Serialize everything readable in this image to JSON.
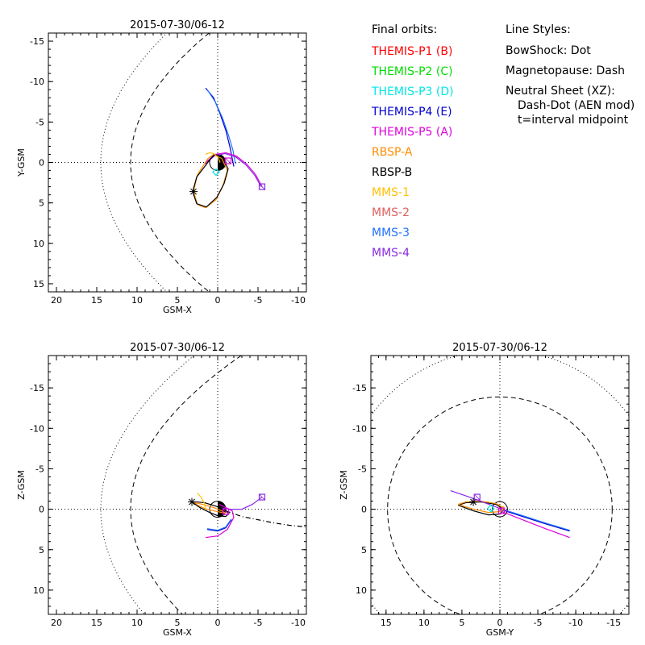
{
  "colors": {
    "themis_p1": "#ff0000",
    "themis_p2": "#00dd00",
    "themis_p3": "#00e5e5",
    "themis_p4": "#0000cc",
    "themis_p5": "#dd00dd",
    "rbsp_a": "#ff8c00",
    "rbsp_b": "#000000",
    "mms1": "#ffc000",
    "mms2": "#e06060",
    "mms3": "#2070ff",
    "mms4": "#8a2be2"
  },
  "legend": {
    "header": "Final orbits:",
    "entries": [
      {
        "label": "THEMIS-P1 (B)",
        "color": "#ff0000"
      },
      {
        "label": "THEMIS-P2 (C)",
        "color": "#00dd00"
      },
      {
        "label": "THEMIS-P3 (D)",
        "color": "#00e5e5"
      },
      {
        "label": "THEMIS-P4 (E)",
        "color": "#0000cc"
      },
      {
        "label": "THEMIS-P5 (A)",
        "color": "#dd00dd"
      },
      {
        "label": "RBSP-A",
        "color": "#ff8c00"
      },
      {
        "label": "RBSP-B",
        "color": "#000000"
      },
      {
        "label": "MMS-1",
        "color": "#ffc000"
      },
      {
        "label": "MMS-2",
        "color": "#e06060"
      },
      {
        "label": "MMS-3",
        "color": "#2070ff"
      },
      {
        "label": "MMS-4",
        "color": "#8a2be2"
      }
    ]
  },
  "line_styles": {
    "header": "Line Styles:",
    "lines": [
      "BowShock: Dot",
      "Magnetopause: Dash",
      "Neutral Sheet (XZ):",
      "Dash-Dot (AEN mod)",
      "t=interval midpoint"
    ]
  },
  "chart_data": [
    {
      "type": "line",
      "title": "2015-07-30/06-12",
      "xlabel": "GSM-X",
      "ylabel": "Y-GSM",
      "xlim": [
        21,
        -11
      ],
      "ylim": [
        16,
        -16
      ],
      "xticks": [
        20,
        15,
        10,
        5,
        0,
        -5,
        -10
      ],
      "yticks": [
        -15,
        -10,
        -5,
        0,
        5,
        10,
        15
      ],
      "series": [
        {
          "color": "#0000cc",
          "x": [
            1.5,
            0.5,
            -0.3,
            -1.0,
            -1.5,
            -1.8,
            -2.0
          ],
          "y": [
            -9.2,
            -8.0,
            -6.0,
            -4.0,
            -2.0,
            -0.5,
            0.5
          ]
        },
        {
          "color": "#2070ff",
          "x": [
            1.3,
            0.3,
            -0.6,
            -1.3,
            -1.9,
            -2.2
          ],
          "y": [
            -9.0,
            -7.5,
            -5.5,
            -3.5,
            -1.5,
            0.2
          ]
        },
        {
          "color": "#dd00dd",
          "x": [
            1.5,
            0.3,
            -1.0,
            -2.3,
            -3.6,
            -4.7,
            -5.5
          ],
          "y": [
            0.0,
            -1.0,
            -1.2,
            -0.8,
            0.2,
            1.5,
            3.0
          ]
        },
        {
          "color": "#8a2be2",
          "x": [
            1.6,
            0.4,
            -0.9,
            -2.2,
            -3.5,
            -4.6,
            -5.4
          ],
          "y": [
            0.2,
            -0.8,
            -1.1,
            -0.7,
            0.3,
            1.6,
            3.0
          ]
        },
        {
          "color": "#ff8c00",
          "x": [
            1.2,
            2.5,
            3.0,
            2.5,
            1.5,
            0.2,
            -0.6,
            -1.2,
            -0.5,
            0.5,
            1.2
          ],
          "y": [
            -0.5,
            1.5,
            3.6,
            5.2,
            5.6,
            4.6,
            3.0,
            1.0,
            -0.5,
            -1.0,
            -0.5
          ]
        },
        {
          "color": "#000000",
          "x": [
            1.0,
            2.6,
            3.1,
            2.6,
            1.4,
            0.1,
            -0.8,
            -1.3,
            -0.6,
            0.4,
            1.0
          ],
          "y": [
            -0.3,
            1.8,
            3.6,
            5.1,
            5.5,
            4.3,
            2.6,
            0.8,
            -0.6,
            -1.0,
            -0.3
          ]
        },
        {
          "color": "#ffc000",
          "x": [
            1.5,
            1.0,
            0.5,
            0.0,
            -0.3
          ],
          "y": [
            -1.0,
            -1.2,
            -1.1,
            -0.7,
            0.0
          ]
        }
      ],
      "markers": [
        {
          "type": "star",
          "x": 3.0,
          "y": 3.6
        },
        {
          "type": "box",
          "x": -5.5,
          "y": 3.0,
          "color": "#8a2be2"
        },
        {
          "type": "box",
          "x": -1.3,
          "y": -0.2,
          "color": "#dd00dd"
        },
        {
          "type": "diamond",
          "x": 0.2,
          "y": 1.2,
          "color": "#00e5e5"
        }
      ]
    },
    {
      "type": "line",
      "title": "2015-07-30/06-12",
      "xlabel": "GSM-X",
      "ylabel": "Z-GSM",
      "xlim": [
        21,
        -11
      ],
      "ylim": [
        13,
        -19
      ],
      "xticks": [
        20,
        15,
        10,
        5,
        0,
        -5,
        -10
      ],
      "yticks": [
        10,
        5,
        0,
        -5,
        -10,
        -15
      ],
      "series": [
        {
          "color": "#0000cc",
          "x": [
            1.3,
            0.0,
            -1.0,
            -1.7
          ],
          "y": [
            2.5,
            2.7,
            2.3,
            1.3
          ]
        },
        {
          "color": "#2070ff",
          "x": [
            1.3,
            0.0,
            -1.0,
            -1.7
          ],
          "y": [
            2.4,
            2.6,
            2.2,
            1.2
          ]
        },
        {
          "color": "#dd00dd",
          "x": [
            1.5,
            0.0,
            -1.2,
            -2.0,
            -1.8,
            -1.0,
            -0.2
          ],
          "y": [
            3.5,
            3.3,
            2.5,
            1.0,
            0.2,
            -0.2,
            -0.6
          ]
        },
        {
          "color": "#8a2be2",
          "x": [
            -0.2,
            -1.5,
            -3.0,
            -4.3,
            -5.5
          ],
          "y": [
            -0.2,
            0.0,
            0.0,
            -0.6,
            -1.5
          ]
        },
        {
          "color": "#ff8c00",
          "x": [
            3.0,
            2.3,
            1.4,
            0.5,
            -0.5,
            -1.0,
            -0.5,
            0.5,
            1.5,
            2.3,
            3.0
          ],
          "y": [
            -0.8,
            -0.4,
            0.0,
            0.2,
            0.4,
            0.5,
            0.2,
            -0.2,
            -0.5,
            -0.7,
            -0.8
          ]
        },
        {
          "color": "#000000",
          "x": [
            3.2,
            2.2,
            1.0,
            0.0,
            -1.0,
            -1.4,
            -0.8,
            0.3,
            1.6,
            2.6,
            3.2
          ],
          "y": [
            -0.9,
            -0.2,
            0.4,
            0.8,
            0.9,
            0.5,
            0.0,
            -0.4,
            -0.8,
            -0.9,
            -0.9
          ]
        },
        {
          "color": "#000000",
          "style": "dashdot",
          "x": [
            -1.0,
            -3.0,
            -5.0,
            -7.0,
            -9.0,
            -11.0
          ],
          "y": [
            0.2,
            0.9,
            1.3,
            1.7,
            2.0,
            2.2
          ]
        },
        {
          "color": "#ffc000",
          "x": [
            2.5,
            2.0,
            1.6,
            1.5
          ],
          "y": [
            -2.0,
            -1.4,
            -0.6,
            0.0
          ]
        }
      ],
      "markers": [
        {
          "type": "star",
          "x": 3.2,
          "y": -0.9
        },
        {
          "type": "box",
          "x": -5.5,
          "y": -1.5,
          "color": "#8a2be2"
        },
        {
          "type": "box",
          "x": -1.0,
          "y": 0.3,
          "color": "#dd00dd"
        }
      ]
    },
    {
      "type": "line",
      "title": "2015-07-30/06-12",
      "xlabel": "GSM-Y",
      "ylabel": "Z-GSM",
      "xlim": [
        17,
        -17
      ],
      "ylim": [
        13,
        -19
      ],
      "xticks": [
        15,
        10,
        5,
        0,
        -5,
        -10,
        -15
      ],
      "yticks": [
        10,
        5,
        0,
        -5,
        -10,
        -15
      ],
      "series": [
        {
          "color": "#dd00dd",
          "x": [
            0.0,
            -3.0,
            -6.0,
            -9.2
          ],
          "y": [
            0.2,
            1.3,
            2.4,
            3.5
          ]
        },
        {
          "color": "#0000cc",
          "x": [
            0.0,
            -3.0,
            -6.0,
            -9.2
          ],
          "y": [
            0.0,
            0.9,
            1.8,
            2.7
          ]
        },
        {
          "color": "#2070ff",
          "x": [
            0.0,
            -3.0,
            -6.0,
            -9.2
          ],
          "y": [
            -0.1,
            0.8,
            1.7,
            2.6
          ]
        },
        {
          "color": "#000000",
          "x": [
            5.5,
            3.5,
            1.5,
            0.0,
            -0.5,
            0.5,
            2.5,
            4.5,
            5.5
          ],
          "y": [
            -0.5,
            0.2,
            0.7,
            0.6,
            0.0,
            -0.6,
            -0.9,
            -0.8,
            -0.5
          ]
        },
        {
          "color": "#ff8c00",
          "x": [
            5.5,
            3.5,
            1.5,
            0.0,
            -0.5,
            0.5,
            2.5,
            4.5,
            5.5
          ],
          "y": [
            -0.6,
            0.0,
            0.4,
            0.3,
            -0.2,
            -0.7,
            -1.0,
            -0.9,
            -0.6
          ]
        },
        {
          "color": "#8a2be2",
          "x": [
            6.5,
            4.0,
            2.0,
            0.0,
            -1.2
          ],
          "y": [
            -2.3,
            -1.5,
            -0.8,
            -0.1,
            0.3
          ]
        },
        {
          "color": "#ffc000",
          "x": [
            -0.2,
            -0.4,
            -0.5
          ],
          "y": [
            0.3,
            0.0,
            -0.4
          ]
        }
      ],
      "markers": [
        {
          "type": "star",
          "x": 3.5,
          "y": -0.9
        },
        {
          "type": "box",
          "x": 3.0,
          "y": -1.5,
          "color": "#8a2be2"
        },
        {
          "type": "box",
          "x": -0.2,
          "y": 0.2,
          "color": "#dd00dd"
        },
        {
          "type": "diamond",
          "x": 1.2,
          "y": -0.1,
          "color": "#00e5e5"
        }
      ]
    }
  ]
}
